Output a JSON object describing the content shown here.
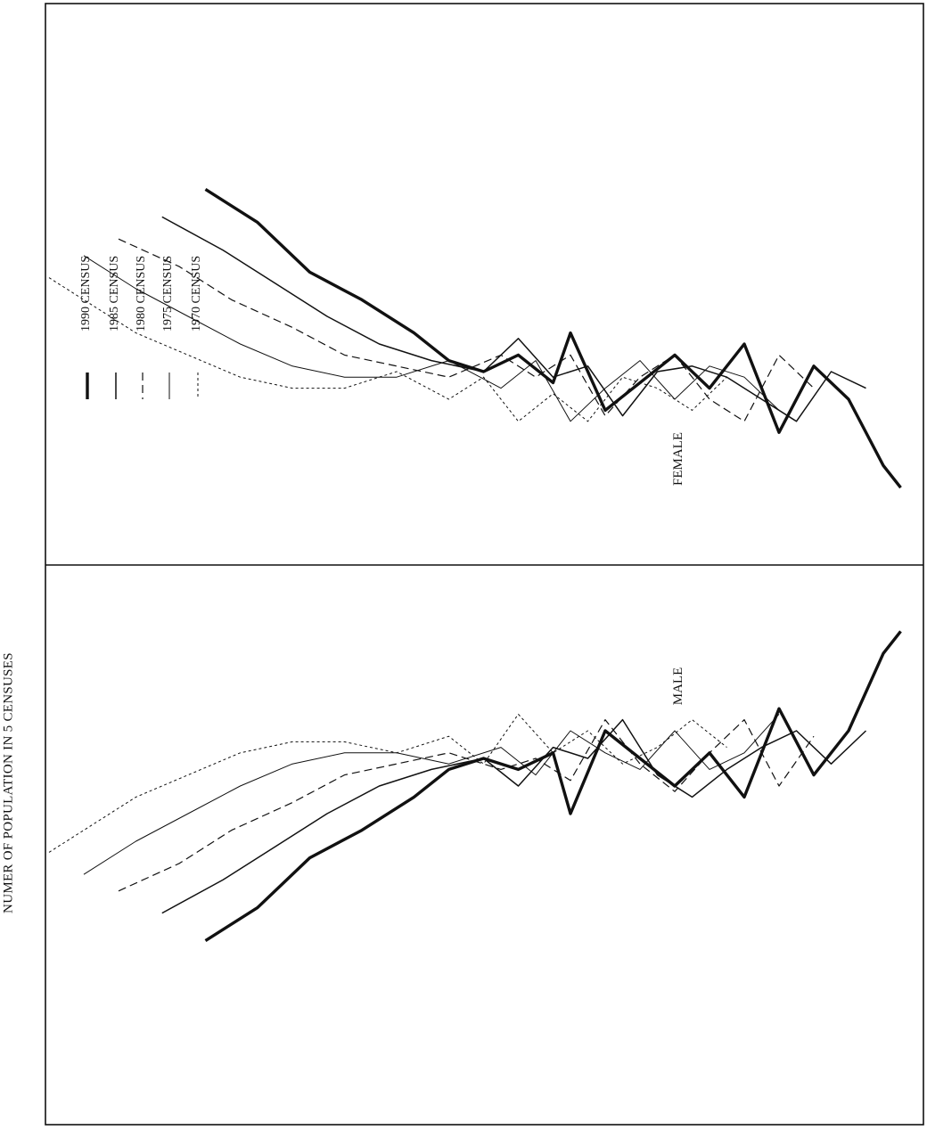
{
  "chart_data": {
    "type": "line",
    "title": "NUMER OF POPULATION IN 5 CENSUSES",
    "orientation": "rotated-90ccw",
    "panels": [
      {
        "name": "MALE"
      },
      {
        "name": "FEMALE"
      }
    ],
    "legend": {
      "placement": "top-left",
      "entries": [
        {
          "label": "1990 CENSUS",
          "style": "thick"
        },
        {
          "label": "1985 CENSUS",
          "style": "solid"
        },
        {
          "label": "1980 CENSUS",
          "style": "long-dash"
        },
        {
          "label": "1975 CENSUS",
          "style": "thin-solid"
        },
        {
          "label": "1970 CENSUS",
          "style": "dotted"
        }
      ]
    },
    "age_range": [
      0,
      100
    ],
    "series": [
      {
        "name": "1990 CENSUS",
        "male": [
          [
            18,
            32
          ],
          [
            24,
            38
          ],
          [
            30,
            47
          ],
          [
            36,
            52
          ],
          [
            42,
            58
          ],
          [
            46,
            63
          ],
          [
            50,
            65
          ],
          [
            54,
            63
          ],
          [
            58,
            66
          ],
          [
            60,
            55
          ],
          [
            64,
            70
          ],
          [
            68,
            65
          ],
          [
            72,
            60
          ],
          [
            76,
            66
          ],
          [
            80,
            58
          ],
          [
            84,
            74
          ],
          [
            88,
            62
          ],
          [
            92,
            70
          ],
          [
            96,
            84
          ],
          [
            98,
            88
          ]
        ],
        "female": [
          [
            18,
            32
          ],
          [
            24,
            38
          ],
          [
            30,
            47
          ],
          [
            36,
            52
          ],
          [
            42,
            58
          ],
          [
            46,
            63
          ],
          [
            50,
            65
          ],
          [
            54,
            62
          ],
          [
            58,
            67
          ],
          [
            60,
            58
          ],
          [
            64,
            72
          ],
          [
            68,
            67
          ],
          [
            72,
            62
          ],
          [
            76,
            68
          ],
          [
            80,
            60
          ],
          [
            84,
            76
          ],
          [
            88,
            64
          ],
          [
            92,
            70
          ],
          [
            96,
            82
          ],
          [
            98,
            86
          ]
        ]
      },
      {
        "name": "1985 CENSUS",
        "male": [
          [
            13,
            37
          ],
          [
            20,
            43
          ],
          [
            26,
            49
          ],
          [
            32,
            55
          ],
          [
            38,
            60
          ],
          [
            44,
            63
          ],
          [
            50,
            65
          ],
          [
            54,
            60
          ],
          [
            58,
            67
          ],
          [
            62,
            65
          ],
          [
            66,
            72
          ],
          [
            70,
            62
          ],
          [
            74,
            58
          ],
          [
            78,
            63
          ],
          [
            82,
            67
          ],
          [
            86,
            70
          ],
          [
            90,
            64
          ],
          [
            94,
            70
          ]
        ],
        "female": [
          [
            13,
            37
          ],
          [
            20,
            43
          ],
          [
            26,
            49
          ],
          [
            32,
            55
          ],
          [
            38,
            60
          ],
          [
            44,
            63
          ],
          [
            50,
            65
          ],
          [
            54,
            59
          ],
          [
            58,
            66
          ],
          [
            62,
            64
          ],
          [
            66,
            73
          ],
          [
            70,
            65
          ],
          [
            74,
            64
          ],
          [
            78,
            66
          ],
          [
            82,
            70
          ],
          [
            86,
            74
          ],
          [
            90,
            65
          ],
          [
            94,
            68
          ]
        ]
      },
      {
        "name": "1980 CENSUS",
        "male": [
          [
            8,
            41
          ],
          [
            15,
            46
          ],
          [
            21,
            52
          ],
          [
            28,
            57
          ],
          [
            34,
            62
          ],
          [
            40,
            64
          ],
          [
            46,
            66
          ],
          [
            52,
            63
          ],
          [
            56,
            65
          ],
          [
            60,
            61
          ],
          [
            64,
            72
          ],
          [
            68,
            64
          ],
          [
            72,
            59
          ],
          [
            76,
            66
          ],
          [
            80,
            72
          ],
          [
            84,
            60
          ],
          [
            88,
            69
          ]
        ],
        "female": [
          [
            8,
            41
          ],
          [
            15,
            46
          ],
          [
            21,
            52
          ],
          [
            28,
            57
          ],
          [
            34,
            62
          ],
          [
            40,
            64
          ],
          [
            46,
            66
          ],
          [
            52,
            62
          ],
          [
            56,
            66
          ],
          [
            60,
            62
          ],
          [
            64,
            73
          ],
          [
            68,
            66
          ],
          [
            72,
            62
          ],
          [
            76,
            70
          ],
          [
            80,
            74
          ],
          [
            84,
            62
          ],
          [
            88,
            68
          ]
        ]
      },
      {
        "name": "1975 CENSUS",
        "male": [
          [
            4,
            44
          ],
          [
            10,
            50
          ],
          [
            16,
            55
          ],
          [
            22,
            60
          ],
          [
            28,
            64
          ],
          [
            34,
            66
          ],
          [
            40,
            66
          ],
          [
            46,
            64
          ],
          [
            52,
            67
          ],
          [
            56,
            62
          ],
          [
            60,
            70
          ],
          [
            64,
            66
          ],
          [
            68,
            63
          ],
          [
            72,
            70
          ],
          [
            76,
            63
          ],
          [
            80,
            66
          ],
          [
            84,
            73
          ]
        ],
        "female": [
          [
            4,
            44
          ],
          [
            10,
            50
          ],
          [
            16,
            55
          ],
          [
            22,
            60
          ],
          [
            28,
            64
          ],
          [
            34,
            66
          ],
          [
            40,
            66
          ],
          [
            46,
            63
          ],
          [
            52,
            68
          ],
          [
            56,
            63
          ],
          [
            60,
            74
          ],
          [
            64,
            68
          ],
          [
            68,
            63
          ],
          [
            72,
            70
          ],
          [
            76,
            64
          ],
          [
            80,
            66
          ],
          [
            84,
            72
          ]
        ]
      },
      {
        "name": "1970 CENSUS",
        "male": [
          [
            0,
            48
          ],
          [
            5,
            53
          ],
          [
            10,
            58
          ],
          [
            16,
            62
          ],
          [
            22,
            66
          ],
          [
            28,
            68
          ],
          [
            34,
            68
          ],
          [
            40,
            66
          ],
          [
            46,
            69
          ],
          [
            50,
            64
          ],
          [
            54,
            73
          ],
          [
            58,
            66
          ],
          [
            62,
            70
          ],
          [
            66,
            64
          ],
          [
            70,
            67
          ],
          [
            74,
            72
          ],
          [
            78,
            67
          ]
        ],
        "female": [
          [
            0,
            48
          ],
          [
            5,
            53
          ],
          [
            10,
            58
          ],
          [
            16,
            62
          ],
          [
            22,
            66
          ],
          [
            28,
            68
          ],
          [
            34,
            68
          ],
          [
            40,
            65
          ],
          [
            46,
            70
          ],
          [
            50,
            66
          ],
          [
            54,
            74
          ],
          [
            58,
            69
          ],
          [
            62,
            74
          ],
          [
            66,
            66
          ],
          [
            70,
            68
          ],
          [
            74,
            72
          ],
          [
            78,
            66
          ]
        ]
      }
    ]
  }
}
